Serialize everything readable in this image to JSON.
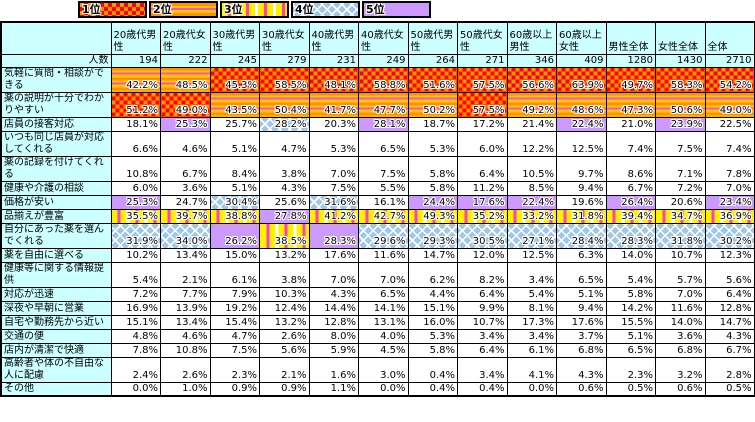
{
  "chart_data": {
    "type": "table",
    "title": "",
    "header_bg": "#CCFFFF",
    "legend_position": "top",
    "legend": [
      {
        "rank": 1,
        "label": "1位",
        "style": "red-orange-checkerboard",
        "colors": [
          "#FF0000",
          "#FF9900"
        ]
      },
      {
        "rank": 2,
        "label": "2位",
        "style": "orange-gold-horizontal-stripes-pink-lines",
        "colors": [
          "#FF9900",
          "#FFC800",
          "#FF4FC4"
        ]
      },
      {
        "rank": 3,
        "label": "3位",
        "style": "yellow-vertical-stripes-pink-white",
        "colors": [
          "#FFF000",
          "#FF3FC0",
          "#FFFFFF"
        ]
      },
      {
        "rank": 4,
        "label": "4位",
        "style": "light-blue-diamond-lattice",
        "colors": [
          "#9FC7E8",
          "#FFFFFF"
        ]
      },
      {
        "rank": 5,
        "label": "5位",
        "style": "solid-purple",
        "colors": [
          "#CC99FF"
        ]
      }
    ],
    "columns": [
      "20歳代男性",
      "20歳代女性",
      "30歳代男性",
      "30歳代女性",
      "40歳代男性",
      "40歳代女性",
      "50歳代男性",
      "50歳代女性",
      "60歳以上男性",
      "60歳以上女性",
      "男性全体",
      "女性全体",
      "全体"
    ],
    "counts_row": {
      "label": "人数",
      "values": [
        "194",
        "222",
        "245",
        "279",
        "231",
        "249",
        "264",
        "271",
        "346",
        "409",
        "1280",
        "1430",
        "2710"
      ]
    },
    "rows": [
      {
        "label": "気軽に質問・相談ができる",
        "values": [
          "42.2%",
          "48.5%",
          "45.3%",
          "58.5%",
          "48.1%",
          "58.8%",
          "51.6%",
          "57.5%",
          "56.6%",
          "63.9%",
          "49.7%",
          "58.3%",
          "54.2%"
        ],
        "ranks": [
          2,
          2,
          1,
          1,
          1,
          1,
          1,
          1,
          1,
          1,
          1,
          1,
          1
        ]
      },
      {
        "label": "薬の説明が十分でわかりやすい",
        "values": [
          "51.2%",
          "49.0%",
          "43.5%",
          "50.4%",
          "41.7%",
          "47.7%",
          "50.2%",
          "57.5%",
          "49.2%",
          "48.6%",
          "47.3%",
          "50.6%",
          "49.0%"
        ],
        "ranks": [
          1,
          1,
          2,
          2,
          2,
          2,
          2,
          1,
          2,
          2,
          2,
          2,
          2
        ]
      },
      {
        "label": "店員の接客対応",
        "values": [
          "18.1%",
          "25.3%",
          "25.7%",
          "28.2%",
          "20.3%",
          "28.1%",
          "18.7%",
          "17.2%",
          "21.4%",
          "22.4%",
          "21.0%",
          "23.9%",
          "22.5%"
        ],
        "ranks": [
          0,
          5,
          0,
          4,
          0,
          5,
          0,
          0,
          0,
          5,
          0,
          5,
          0
        ]
      },
      {
        "label": "いつも同じ店員が対応してくれる",
        "values": [
          "6.6%",
          "4.6%",
          "5.1%",
          "4.7%",
          "5.3%",
          "6.5%",
          "5.3%",
          "6.0%",
          "12.2%",
          "12.5%",
          "7.4%",
          "7.5%",
          "7.4%"
        ],
        "ranks": [
          0,
          0,
          0,
          0,
          0,
          0,
          0,
          0,
          0,
          0,
          0,
          0,
          0
        ]
      },
      {
        "label": "薬の記録を付けてくれる",
        "values": [
          "10.8%",
          "6.7%",
          "8.4%",
          "3.8%",
          "7.0%",
          "7.5%",
          "5.8%",
          "6.4%",
          "10.5%",
          "9.7%",
          "8.6%",
          "7.1%",
          "7.8%"
        ],
        "ranks": [
          0,
          0,
          0,
          0,
          0,
          0,
          0,
          0,
          0,
          0,
          0,
          0,
          0
        ]
      },
      {
        "label": "健康や介護の相談",
        "values": [
          "6.0%",
          "3.6%",
          "5.1%",
          "4.3%",
          "7.5%",
          "5.5%",
          "5.8%",
          "11.2%",
          "8.5%",
          "9.4%",
          "6.7%",
          "7.2%",
          "7.0%"
        ],
        "ranks": [
          0,
          0,
          0,
          0,
          0,
          0,
          0,
          0,
          0,
          0,
          0,
          0,
          0
        ]
      },
      {
        "label": "価格が安い",
        "values": [
          "25.3%",
          "24.7%",
          "30.4%",
          "25.6%",
          "31.6%",
          "16.1%",
          "24.4%",
          "17.6%",
          "22.4%",
          "19.6%",
          "26.4%",
          "20.6%",
          "23.4%"
        ],
        "ranks": [
          5,
          0,
          4,
          0,
          4,
          0,
          5,
          5,
          5,
          0,
          5,
          0,
          5
        ]
      },
      {
        "label": "品揃えが豊富",
        "values": [
          "35.5%",
          "39.7%",
          "38.8%",
          "27.8%",
          "41.2%",
          "42.7%",
          "49.3%",
          "35.2%",
          "33.2%",
          "31.8%",
          "39.4%",
          "34.7%",
          "36.9%"
        ],
        "ranks": [
          3,
          3,
          3,
          5,
          3,
          3,
          3,
          3,
          3,
          3,
          3,
          3,
          3
        ]
      },
      {
        "label": "自分にあった薬を選んでくれる",
        "values": [
          "31.9%",
          "34.0%",
          "26.2%",
          "38.5%",
          "28.3%",
          "29.6%",
          "29.3%",
          "30.5%",
          "27.1%",
          "28.4%",
          "28.3%",
          "31.8%",
          "30.2%"
        ],
        "ranks": [
          4,
          4,
          5,
          3,
          5,
          4,
          4,
          4,
          4,
          4,
          4,
          4,
          4
        ]
      },
      {
        "label": "薬を自由に選べる",
        "values": [
          "10.2%",
          "13.4%",
          "15.0%",
          "13.2%",
          "17.6%",
          "11.6%",
          "14.7%",
          "12.0%",
          "12.5%",
          "6.3%",
          "14.0%",
          "10.7%",
          "12.3%"
        ],
        "ranks": [
          0,
          0,
          0,
          0,
          0,
          0,
          0,
          0,
          0,
          0,
          0,
          0,
          0
        ]
      },
      {
        "label": "健康等に関する情報提供",
        "values": [
          "5.4%",
          "2.1%",
          "6.1%",
          "3.8%",
          "7.0%",
          "7.0%",
          "6.2%",
          "8.2%",
          "3.4%",
          "6.5%",
          "5.4%",
          "5.7%",
          "5.6%"
        ],
        "ranks": [
          0,
          0,
          0,
          0,
          0,
          0,
          0,
          0,
          0,
          0,
          0,
          0,
          0
        ]
      },
      {
        "label": "対応が迅速",
        "values": [
          "7.2%",
          "7.7%",
          "7.9%",
          "10.3%",
          "4.3%",
          "6.5%",
          "4.4%",
          "6.4%",
          "5.4%",
          "5.1%",
          "5.8%",
          "7.0%",
          "6.4%"
        ],
        "ranks": [
          0,
          0,
          0,
          0,
          0,
          0,
          0,
          0,
          0,
          0,
          0,
          0,
          0
        ]
      },
      {
        "label": "深夜や早朝に営業",
        "values": [
          "16.9%",
          "13.9%",
          "19.2%",
          "12.4%",
          "14.4%",
          "14.1%",
          "15.1%",
          "9.9%",
          "8.1%",
          "9.4%",
          "14.2%",
          "11.6%",
          "12.8%"
        ],
        "ranks": [
          0,
          0,
          0,
          0,
          0,
          0,
          0,
          0,
          0,
          0,
          0,
          0,
          0
        ]
      },
      {
        "label": "自宅や勤務先から近い",
        "values": [
          "15.1%",
          "13.4%",
          "15.4%",
          "13.2%",
          "12.8%",
          "13.1%",
          "16.0%",
          "10.7%",
          "17.3%",
          "17.6%",
          "15.5%",
          "14.0%",
          "14.7%"
        ],
        "ranks": [
          0,
          0,
          0,
          0,
          0,
          0,
          0,
          0,
          0,
          0,
          0,
          0,
          0
        ]
      },
      {
        "label": "交通の便",
        "values": [
          "4.8%",
          "4.6%",
          "4.7%",
          "2.6%",
          "8.0%",
          "4.0%",
          "5.3%",
          "3.4%",
          "3.4%",
          "3.7%",
          "5.1%",
          "3.6%",
          "4.3%"
        ],
        "ranks": [
          0,
          0,
          0,
          0,
          0,
          0,
          0,
          0,
          0,
          0,
          0,
          0,
          0
        ]
      },
      {
        "label": "店内が清潔で快適",
        "values": [
          "7.8%",
          "10.8%",
          "7.5%",
          "5.6%",
          "5.9%",
          "4.5%",
          "5.8%",
          "6.4%",
          "6.1%",
          "6.8%",
          "6.5%",
          "6.8%",
          "6.7%"
        ],
        "ranks": [
          0,
          0,
          0,
          0,
          0,
          0,
          0,
          0,
          0,
          0,
          0,
          0,
          0
        ]
      },
      {
        "label": "高齢者や体の不自由な人に配慮",
        "values": [
          "2.4%",
          "2.6%",
          "2.3%",
          "2.1%",
          "1.6%",
          "3.0%",
          "0.4%",
          "3.4%",
          "4.1%",
          "4.3%",
          "2.3%",
          "3.2%",
          "2.8%"
        ],
        "ranks": [
          0,
          0,
          0,
          0,
          0,
          0,
          0,
          0,
          0,
          0,
          0,
          0,
          0
        ]
      },
      {
        "label": "その他",
        "values": [
          "0.0%",
          "1.0%",
          "0.9%",
          "0.9%",
          "1.1%",
          "0.0%",
          "0.4%",
          "0.4%",
          "0.0%",
          "0.6%",
          "0.5%",
          "0.6%",
          "0.5%"
        ],
        "ranks": [
          0,
          0,
          0,
          0,
          0,
          0,
          0,
          0,
          0,
          0,
          0,
          0,
          0
        ]
      }
    ],
    "group_start_row_indexes": [
      0,
      6,
      11
    ],
    "thick_left_border_col_indexes": [
      6,
      10,
      12
    ]
  }
}
